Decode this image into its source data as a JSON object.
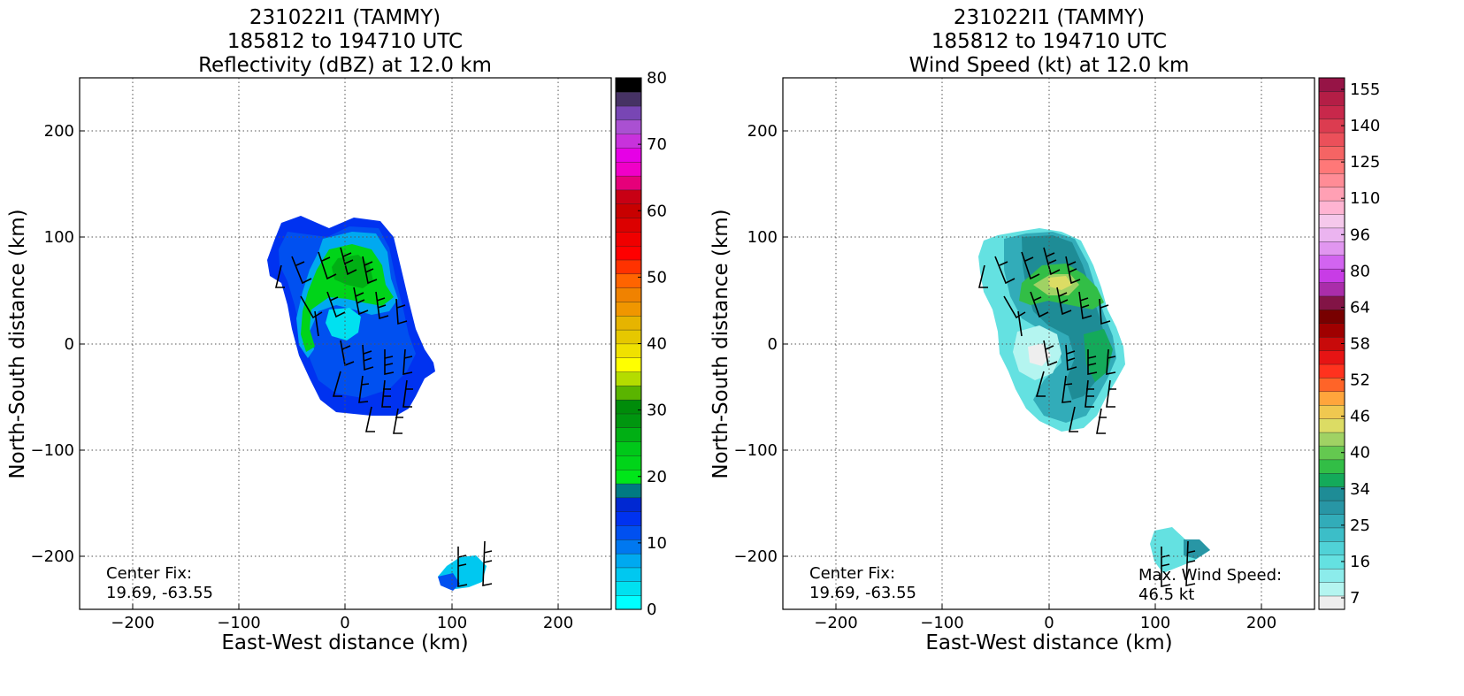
{
  "panels": [
    {
      "title_lines": [
        "231022I1 (TAMMY)",
        "185812 to 194710 UTC",
        "Reflectivity (dBZ) at 12.0 km"
      ],
      "xlabel": "East-West distance (km)",
      "ylabel": "North-South distance (km)",
      "center_fix_label": "Center Fix:",
      "center_fix_value": "19.69, -63.55",
      "colorbar": {
        "labels": [
          "0",
          "10",
          "20",
          "30",
          "40",
          "50",
          "60",
          "70",
          "80"
        ],
        "colors": [
          "#00ffff",
          "#00e1f0",
          "#00c8f0",
          "#00a9f0",
          "#0078f0",
          "#0050f0",
          "#0032f0",
          "#0028d2",
          "#007a82",
          "#00e619",
          "#00d419",
          "#00c819",
          "#00af14",
          "#00960f",
          "#008c0a",
          "#5ab400",
          "#b4dc00",
          "#ffff00",
          "#f0e100",
          "#e6c800",
          "#e6b400",
          "#f09600",
          "#f08200",
          "#ff6400",
          "#ff3200",
          "#ff0000",
          "#f00000",
          "#dc0000",
          "#c80000",
          "#c80014",
          "#e6007a",
          "#f000c8",
          "#e600e6",
          "#c832dc",
          "#aa50d2",
          "#7846b4",
          "#463264",
          "#000000"
        ]
      },
      "annotation": null
    },
    {
      "title_lines": [
        "231022I1 (TAMMY)",
        "185812 to 194710 UTC",
        "Wind Speed (kt) at 12.0 km"
      ],
      "xlabel": "East-West distance (km)",
      "ylabel": "North-South distance (km)",
      "center_fix_label": "Center Fix:",
      "center_fix_value": "19.69, -63.55",
      "colorbar": {
        "labels": [
          "7",
          "16",
          "25",
          "34",
          "40",
          "46",
          "52",
          "58",
          "64",
          "80",
          "96",
          "110",
          "125",
          "140",
          "155"
        ],
        "colors": [
          "#eeeeee",
          "#b4f5f0",
          "#8ceceb",
          "#64e1e1",
          "#50d2d7",
          "#3cbec8",
          "#32acb9",
          "#2896a5",
          "#1e8c96",
          "#14aa5a",
          "#32be46",
          "#64c850",
          "#a0d264",
          "#dcdc64",
          "#f0c850",
          "#ffa53c",
          "#ff6428",
          "#ff321e",
          "#e61414",
          "#c80a0a",
          "#a00000",
          "#780000",
          "#821446",
          "#aa2daa",
          "#c83ce6",
          "#d264f0",
          "#e196f0",
          "#ebb4f0",
          "#f5c8eb",
          "#ffb4d2",
          "#ffa0b4",
          "#ff8c96",
          "#ff7878",
          "#f56464",
          "#eb505a",
          "#dc3c50",
          "#c8284b",
          "#b41e46",
          "#961446"
        ]
      },
      "annotation": {
        "label": "Max. Wind Speed:",
        "value": "46.5 kt"
      }
    }
  ],
  "chart_data": [
    {
      "type": "heatmap",
      "title": "231022I1 (TAMMY) 185812 to 194710 UTC Reflectivity (dBZ) at 12.0 km",
      "xlabel": "East-West distance (km)",
      "ylabel": "North-South distance (km)",
      "xlim": [
        -250,
        250
      ],
      "ylim": [
        -250,
        250
      ],
      "xticks": [
        -200,
        -100,
        0,
        100,
        200
      ],
      "yticks": [
        -200,
        -100,
        0,
        100,
        200
      ],
      "grid": true,
      "colorbar_range": [
        0,
        80
      ],
      "colorbar_label_values": [
        0,
        10,
        20,
        30,
        40,
        50,
        60,
        70,
        80
      ],
      "regions": [
        {
          "name": "main echo",
          "approx_x_range": [
            -75,
            85
          ],
          "approx_y_range": [
            -70,
            120
          ],
          "typical_value": 10
        },
        {
          "name": "enhanced core north",
          "approx_x_range": [
            -40,
            60
          ],
          "approx_y_range": [
            0,
            90
          ],
          "typical_value": 22
        },
        {
          "name": "isolated cell south",
          "approx_x_range": [
            85,
            135
          ],
          "approx_y_range": [
            -230,
            -205
          ],
          "typical_value": 5
        }
      ]
    },
    {
      "type": "heatmap",
      "title": "231022I1 (TAMMY) 185812 to 194710 UTC Wind Speed (kt) at 12.0 km",
      "xlabel": "East-West distance (km)",
      "ylabel": "North-South distance (km)",
      "xlim": [
        -250,
        250
      ],
      "ylim": [
        -250,
        250
      ],
      "xticks": [
        -200,
        -100,
        0,
        100,
        200
      ],
      "yticks": [
        -200,
        -100,
        0,
        100,
        200
      ],
      "grid": true,
      "colorbar_label_values": [
        7,
        16,
        25,
        34,
        40,
        46,
        52,
        58,
        64,
        80,
        96,
        110,
        125,
        140,
        155
      ],
      "regions": [
        {
          "name": "main wind field",
          "approx_x_range": [
            -65,
            75
          ],
          "approx_y_range": [
            -85,
            110
          ],
          "typical_value": 22
        },
        {
          "name": "jet maximum north",
          "approx_x_range": [
            -10,
            45
          ],
          "approx_y_range": [
            45,
            75
          ],
          "typical_value": 42
        },
        {
          "name": "eastern band",
          "approx_x_range": [
            40,
            70
          ],
          "approx_y_range": [
            -30,
            20
          ],
          "typical_value": 32
        },
        {
          "name": "low-wind center",
          "approx_x_range": [
            -25,
            10
          ],
          "approx_y_range": [
            -25,
            10
          ],
          "typical_value": 9
        },
        {
          "name": "isolated area south",
          "approx_x_range": [
            95,
            155
          ],
          "approx_y_range": [
            -230,
            -175
          ],
          "typical_value": 18
        }
      ],
      "max_wind_speed_kt": 46.5
    }
  ]
}
